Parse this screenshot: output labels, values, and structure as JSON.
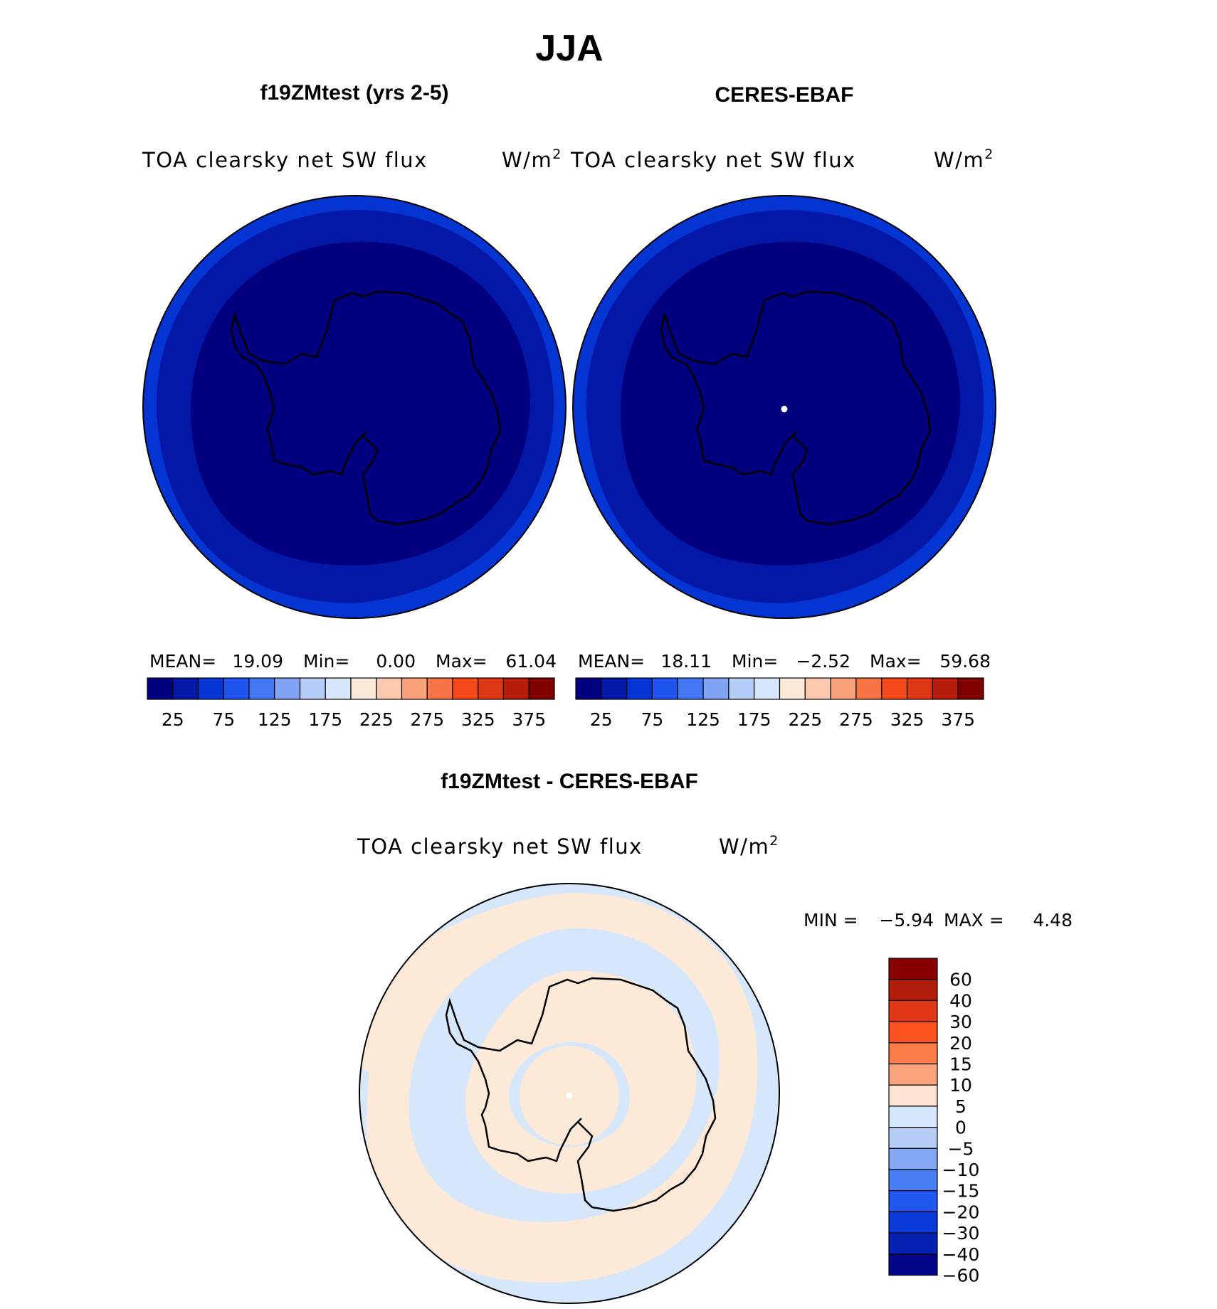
{
  "page": {
    "season": "JJA"
  },
  "panels": {
    "model": {
      "case_title": "f19ZMtest (yrs 2-5)",
      "field": "TOA clearsky net SW flux",
      "units": "W/m",
      "units_exp": "2",
      "stats": {
        "mean_label": "MEAN=",
        "mean": "19.09",
        "min_label": "Min=",
        "min": "0.00",
        "max_label": "Max=",
        "max": "61.04"
      }
    },
    "obs": {
      "case_title": "CERES-EBAF",
      "field": "TOA clearsky net SW flux",
      "units": "W/m",
      "units_exp": "2",
      "stats": {
        "mean_label": "MEAN=",
        "mean": "18.11",
        "min_label": "Min=",
        "min": "−2.52",
        "max_label": "Max=",
        "max": "59.68"
      }
    },
    "diff": {
      "case_title": "f19ZMtest - CERES-EBAF",
      "field": "TOA clearsky net SW flux",
      "units": "W/m",
      "units_exp": "2",
      "minmax": {
        "min_label": "MIN =",
        "min": "−5.94",
        "max_label": "MAX =",
        "max": "4.48"
      }
    }
  },
  "colorbars": {
    "abs": {
      "colors": [
        "#02007e",
        "#0318a6",
        "#0434d2",
        "#1f55ee",
        "#4477f3",
        "#82a4f4",
        "#b4ccf6",
        "#d6e7fb",
        "#fde9d8",
        "#fac9ae",
        "#f9a17a",
        "#f77444",
        "#f4491a",
        "#dc3712",
        "#b51c0a",
        "#800000"
      ],
      "tick_labels": [
        "25",
        "75",
        "125",
        "175",
        "225",
        "275",
        "325",
        "375"
      ]
    },
    "diff": {
      "colors_top_to_bottom": [
        "#880000",
        "#b11f0c",
        "#df3715",
        "#fc5220",
        "#fb7d48",
        "#fba57e",
        "#fee5d3",
        "#d6e9fc",
        "#b4ccf6",
        "#84a8f5",
        "#4a7ef4",
        "#1f57ef",
        "#0a3bd8",
        "#0620b0",
        "#020588"
      ],
      "tick_labels": [
        "60",
        "40",
        "30",
        "20",
        "15",
        "10",
        "5",
        "0",
        "−5",
        "−10",
        "−15",
        "−20",
        "−30",
        "−40",
        "−60"
      ]
    }
  },
  "map_colors": {
    "abs_outer": "#0434d2",
    "abs_mid": "#0318a6",
    "abs_inner": "#02007e",
    "diff_negative": "#d6e7fb",
    "diff_positive": "#fde9d8",
    "coastline": "#000000"
  }
}
